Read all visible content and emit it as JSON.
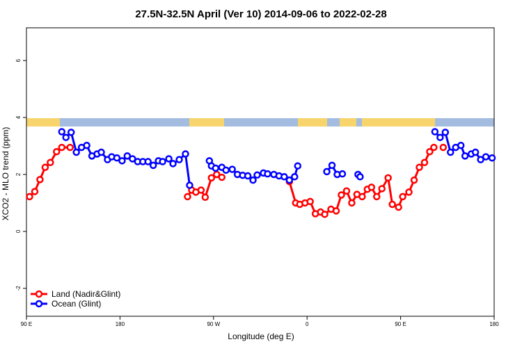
{
  "chart_data": {
    "type": "line",
    "title": "27.5N-32.5N April (Ver 10)   2014-09-06 to 2022-02-28",
    "x_label": "Longitude (deg E)",
    "y_label": "XCO2 - MLO trend (ppm)",
    "xlim": [
      90,
      540
    ],
    "xticks": [
      {
        "value": 90,
        "label": "90 E"
      },
      180,
      {
        "value": 270,
        "label": "90 W"
      },
      {
        "value": 360,
        "label": "0"
      },
      {
        "value": 450,
        "label": "90 E"
      },
      {
        "value": 540,
        "label": "180"
      }
    ],
    "ylim": [
      -2.98,
      7.15
    ],
    "yticks": [
      -2,
      0,
      2,
      4,
      6
    ],
    "legend": "bottom-left",
    "series": [
      {
        "name": "Land (Nadir&Glint)",
        "color": "#ff0000",
        "x": [
          93,
          98,
          103,
          108,
          113,
          119,
          124,
          132,
          null,
          245,
          249,
          253,
          258,
          262,
          268,
          273,
          278,
          null,
          343,
          349,
          353,
          358,
          363,
          368,
          373,
          377,
          383,
          388,
          393,
          398,
          403,
          408,
          413,
          418,
          422,
          427,
          432,
          438,
          442,
          448,
          452,
          458,
          463,
          468,
          473,
          478,
          482,
          null,
          491
        ],
        "values": [
          1.22,
          1.4,
          1.82,
          2.25,
          2.42,
          2.8,
          2.95,
          2.95,
          null,
          1.22,
          1.45,
          1.38,
          1.45,
          1.2,
          1.88,
          2.0,
          1.9,
          null,
          1.75,
          1.0,
          0.95,
          1.0,
          1.05,
          0.62,
          0.68,
          0.6,
          0.78,
          0.72,
          1.28,
          1.42,
          1.0,
          1.3,
          1.22,
          1.48,
          1.55,
          1.22,
          1.5,
          1.88,
          0.95,
          0.85,
          1.22,
          1.38,
          1.8,
          2.25,
          2.42,
          2.8,
          2.95,
          null,
          2.95
        ]
      },
      {
        "name": "Ocean (Glint)",
        "color": "#0000ff",
        "x": [
          124,
          128,
          133,
          138,
          143,
          148,
          153,
          158,
          162,
          168,
          172,
          177,
          182,
          187,
          192,
          197,
          202,
          207,
          212,
          217,
          221,
          227,
          231,
          237,
          243,
          247,
          null,
          266,
          268,
          272,
          278,
          282,
          288,
          293,
          298,
          303,
          308,
          312,
          318,
          322,
          328,
          333,
          338,
          343,
          348,
          351,
          null,
          379,
          384,
          389,
          394,
          null,
          409,
          411,
          null,
          483,
          488,
          493,
          498,
          503,
          508,
          512,
          518,
          522,
          527,
          532,
          538
        ],
        "values": [
          3.5,
          3.3,
          3.48,
          2.78,
          2.95,
          3.02,
          2.65,
          2.72,
          2.78,
          2.52,
          2.62,
          2.58,
          2.48,
          2.65,
          2.55,
          2.45,
          2.45,
          2.45,
          2.32,
          2.48,
          2.45,
          2.55,
          2.38,
          2.52,
          2.72,
          1.62,
          null,
          2.48,
          2.3,
          2.22,
          2.25,
          2.15,
          2.18,
          2.0,
          1.97,
          1.95,
          1.8,
          1.98,
          2.05,
          2.02,
          2.0,
          1.95,
          1.92,
          1.8,
          1.92,
          2.3,
          null,
          2.1,
          2.32,
          2.0,
          2.02,
          null,
          2.0,
          1.92,
          null,
          3.5,
          3.3,
          3.48,
          2.78,
          2.95,
          3.02,
          2.65,
          2.72,
          2.78,
          2.52,
          2.62,
          2.58
        ]
      }
    ]
  }
}
